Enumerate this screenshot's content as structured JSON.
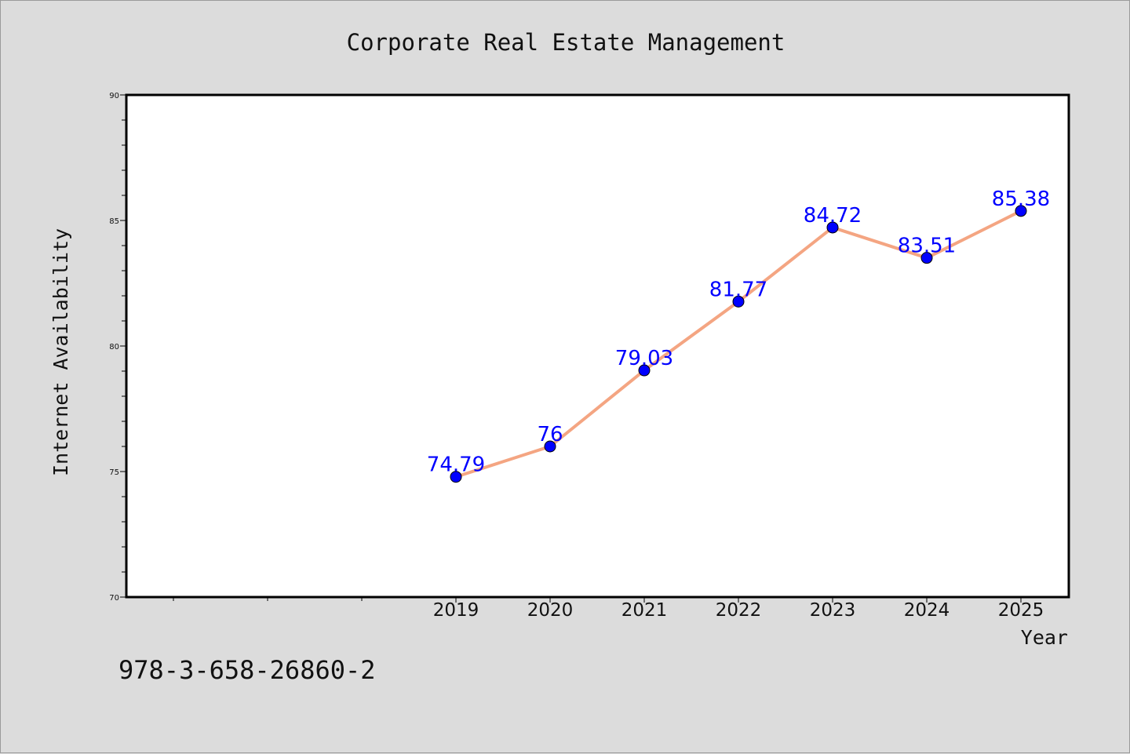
{
  "chart_data": {
    "type": "line",
    "title": "Corporate Real Estate Management",
    "xlabel": "Year",
    "ylabel": "Internet Availability",
    "categories": [
      "2019",
      "2020",
      "2021",
      "2022",
      "2023",
      "2024",
      "2025"
    ],
    "series": [
      {
        "values": [
          74.79,
          76,
          79.03,
          81.77,
          84.72,
          83.51,
          85.38
        ]
      }
    ],
    "data_labels": [
      "74.79",
      "76",
      "79.03",
      "81.77",
      "84.72",
      "83.51",
      "85.38"
    ],
    "ylim": [
      70,
      90
    ],
    "yticks": [
      "70",
      "75",
      "80",
      "85",
      "90"
    ],
    "grid": false,
    "line_color": "#f4a582",
    "marker_color": "#0000ff",
    "label_color": "#0000ff"
  },
  "footer": {
    "text": "978-3-658-26860-2"
  }
}
